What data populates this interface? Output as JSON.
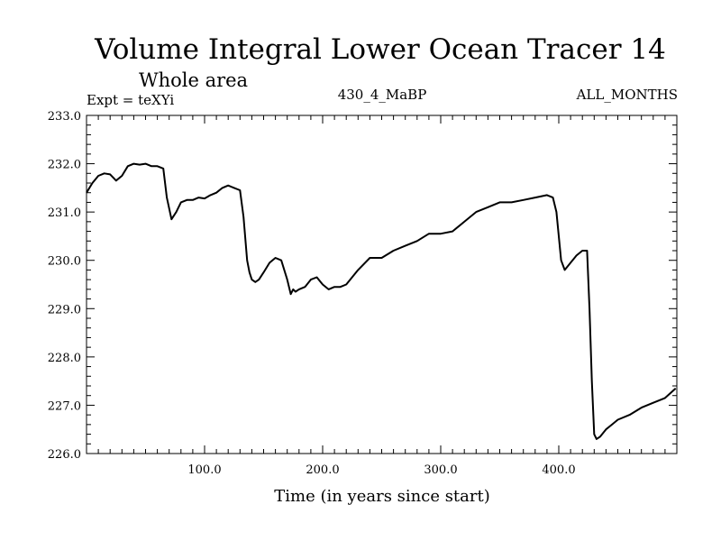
{
  "header": {
    "title": "Volume Integral Lower Ocean Tracer 14",
    "subtitle": "Whole area",
    "expt": "Expt = teXYi",
    "run": "430_4_MaBP",
    "period": "ALL_MONTHS"
  },
  "chart_data": {
    "type": "line",
    "title": "Volume Integral Lower Ocean Tracer 14",
    "xlabel": "Time (in years since start)",
    "ylabel": "",
    "xlim": [
      0,
      500
    ],
    "ylim": [
      226.0,
      233.0
    ],
    "xticks": [
      100,
      200,
      300,
      400
    ],
    "xtick_labels": [
      "100.0",
      "200.0",
      "300.0",
      "400.0"
    ],
    "yticks": [
      226,
      227,
      228,
      229,
      230,
      231,
      232,
      233
    ],
    "ytick_labels": [
      "226.0",
      "227.0",
      "228.0",
      "229.0",
      "230.0",
      "231.0",
      "232.0",
      "233.0"
    ],
    "grid": false,
    "line_color": "#000000",
    "series": [
      {
        "x": [
          0,
          5,
          10,
          15,
          20,
          25,
          30,
          35,
          40,
          45,
          50,
          55,
          60,
          65,
          68,
          72,
          76,
          80,
          85,
          90,
          95,
          100,
          105,
          110,
          115,
          120,
          125,
          130,
          133,
          136,
          138,
          140,
          143,
          146,
          150,
          155,
          160,
          165,
          170,
          173,
          175,
          177,
          180,
          185,
          190,
          195,
          200,
          205,
          210,
          215,
          220,
          230,
          240,
          250,
          260,
          270,
          280,
          290,
          300,
          310,
          320,
          330,
          340,
          350,
          360,
          370,
          380,
          390,
          395,
          398,
          400,
          402,
          405,
          410,
          415,
          420,
          424,
          426,
          428,
          430,
          432,
          435,
          440,
          445,
          450,
          460,
          470,
          480,
          490,
          499
        ],
        "y": [
          231.4,
          231.6,
          231.75,
          231.8,
          231.78,
          231.65,
          231.75,
          231.95,
          232.0,
          231.98,
          232.0,
          231.95,
          231.95,
          231.9,
          231.3,
          230.85,
          231.0,
          231.2,
          231.25,
          231.25,
          231.3,
          231.28,
          231.35,
          231.4,
          231.5,
          231.55,
          231.5,
          231.45,
          230.9,
          230.0,
          229.75,
          229.6,
          229.55,
          229.6,
          229.75,
          229.95,
          230.05,
          230.0,
          229.6,
          229.3,
          229.4,
          229.35,
          229.4,
          229.45,
          229.6,
          229.65,
          229.5,
          229.4,
          229.45,
          229.45,
          229.5,
          229.8,
          230.05,
          230.05,
          230.2,
          230.3,
          230.4,
          230.55,
          230.55,
          230.6,
          230.8,
          231.0,
          231.1,
          231.2,
          231.2,
          231.25,
          231.3,
          231.35,
          231.3,
          231.0,
          230.5,
          230.0,
          229.8,
          229.95,
          230.1,
          230.2,
          230.2,
          229.0,
          227.5,
          226.4,
          226.3,
          226.35,
          226.5,
          226.6,
          226.7,
          226.8,
          226.95,
          227.05,
          227.15,
          227.35
        ]
      }
    ]
  }
}
